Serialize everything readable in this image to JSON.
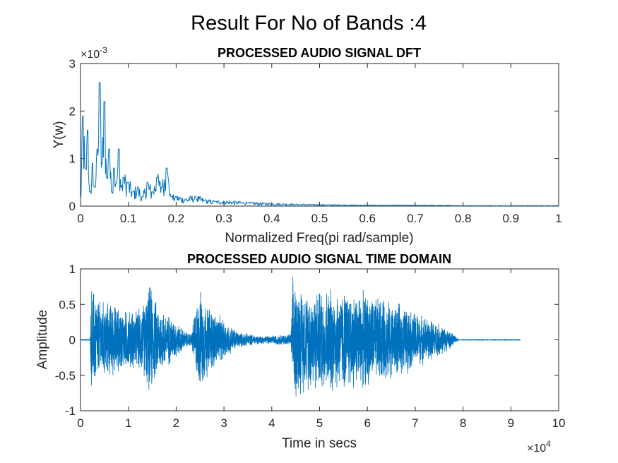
{
  "figure_title": "Result For No of Bands :4",
  "line_color": "#0072BD",
  "chart_data": [
    {
      "type": "line",
      "title": "PROCESSED AUDIO SIGNAL DFT",
      "xlabel": "Normalized Freq(pi rad/sample)",
      "ylabel": "Y(w)",
      "y_exponent_label": "×10",
      "y_exponent": "-3",
      "xlim": [
        0,
        1
      ],
      "ylim": [
        0,
        0.003
      ],
      "xticks": [
        0,
        0.1,
        0.2,
        0.3,
        0.4,
        0.5,
        0.6,
        0.7,
        0.8,
        0.9,
        1
      ],
      "xtick_labels": [
        "0",
        "0.1",
        "0.2",
        "0.3",
        "0.4",
        "0.5",
        "0.6",
        "0.7",
        "0.8",
        "0.9",
        "1"
      ],
      "yticks": [
        0,
        0.001,
        0.002,
        0.003
      ],
      "ytick_labels": [
        "0",
        "1",
        "2",
        "3"
      ],
      "series": [
        {
          "x": [
            0,
            0.005,
            0.01,
            0.015,
            0.02,
            0.025,
            0.03,
            0.035,
            0.04,
            0.045,
            0.05,
            0.055,
            0.06,
            0.065,
            0.07,
            0.075,
            0.08,
            0.085,
            0.09,
            0.1,
            0.11,
            0.12,
            0.13,
            0.14,
            0.15,
            0.16,
            0.17,
            0.18,
            0.19,
            0.2,
            0.22,
            0.24,
            0.26,
            0.28,
            0.3,
            0.35,
            0.4,
            0.45,
            0.5,
            0.6,
            0.7,
            0.8,
            0.9,
            1.0
          ],
          "y": [
            0.0002,
            0.0019,
            0.0008,
            0.0016,
            0.0003,
            0.0009,
            0.0004,
            0.0012,
            0.0026,
            0.0009,
            0.0022,
            0.0006,
            0.0012,
            0.0003,
            0.0008,
            0.0005,
            0.0012,
            0.0004,
            0.0006,
            0.0005,
            0.0003,
            0.0004,
            0.0002,
            0.0005,
            0.0003,
            0.0006,
            0.0004,
            0.0008,
            0.0002,
            0.0002,
            0.00015,
            0.0002,
            0.00012,
            0.0001,
            0.0001,
            7e-05,
            5e-05,
            4e-05,
            3e-05,
            2e-05,
            2e-05,
            1e-05,
            1e-05,
            1e-05
          ]
        }
      ]
    },
    {
      "type": "line",
      "title": "PROCESSED AUDIO SIGNAL TIME DOMAIN",
      "xlabel": "Time in secs",
      "ylabel": "Amplitude",
      "x_exponent_label": "×10",
      "x_exponent": "4",
      "xlim": [
        0,
        100000
      ],
      "ylim": [
        -1,
        1
      ],
      "xticks": [
        0,
        10000,
        20000,
        30000,
        40000,
        50000,
        60000,
        70000,
        80000,
        90000,
        100000
      ],
      "xtick_labels": [
        "0",
        "1",
        "2",
        "3",
        "4",
        "5",
        "6",
        "7",
        "8",
        "9",
        "10"
      ],
      "yticks": [
        -1,
        -0.5,
        0,
        0.5,
        1
      ],
      "ytick_labels": [
        "-1",
        "-0.5",
        "0",
        "0.5",
        "1"
      ],
      "series": [
        {
          "x_end": 92000,
          "envelope": {
            "x": [
              0,
              2000,
              2300,
              4000,
              7000,
              9000,
              12000,
              13500,
              14500,
              16000,
              19000,
              22000,
              23200,
              24000,
              25000,
              27000,
              30000,
              33000,
              36000,
              38000,
              40000,
              44000,
              44400,
              46000,
              48000,
              52000,
              56000,
              60000,
              64000,
              68000,
              72000,
              75000,
              77000,
              78500,
              79000,
              92000
            ],
            "amp": [
              0.01,
              0.01,
              0.85,
              0.6,
              0.55,
              0.45,
              0.45,
              0.6,
              0.85,
              0.55,
              0.35,
              0.12,
              0.1,
              0.5,
              0.75,
              0.5,
              0.3,
              0.12,
              0.08,
              0.06,
              0.07,
              0.09,
              0.95,
              0.8,
              0.75,
              0.8,
              0.75,
              0.7,
              0.6,
              0.5,
              0.35,
              0.25,
              0.15,
              0.05,
              0.01,
              0.01
            ]
          }
        }
      ]
    }
  ]
}
